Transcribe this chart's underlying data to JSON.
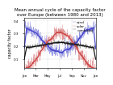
{
  "title_line1": "Mean annual cycle of the capacity factor",
  "title_line2": "over Europe (between 1980 and 2013)",
  "ylabel": "capacity factor",
  "xlim": [
    0,
    365
  ],
  "ylim": [
    0.03,
    0.42
  ],
  "yticks": [
    0.1,
    0.2,
    0.3,
    0.4
  ],
  "months": [
    "Jan",
    "Mar",
    "May",
    "Jul",
    "Sep",
    "Nov",
    "Jan"
  ],
  "month_days": [
    1,
    60,
    121,
    182,
    244,
    305,
    365
  ],
  "wind_color": "#4444cc",
  "solar_color": "#cc4444",
  "combined_color": "#111111",
  "legend_labels": [
    "wind",
    "solar",
    "combined"
  ],
  "background_color": "#ffffff",
  "title_fontsize": 4.0,
  "label_fontsize": 3.5,
  "tick_fontsize": 3.0,
  "legend_fontsize": 3.0,
  "noise_seed_wind": 42,
  "noise_seed_solar": 7,
  "noise_seed_combined": 13
}
